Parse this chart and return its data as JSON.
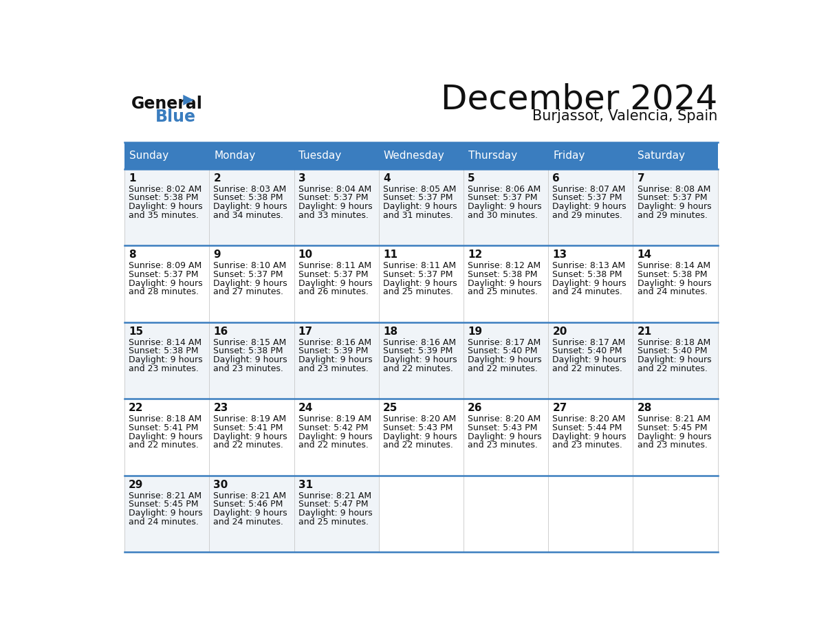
{
  "title": "December 2024",
  "subtitle": "Burjassot, Valencia, Spain",
  "header_color": "#3a7dbf",
  "header_text_color": "#ffffff",
  "day_names": [
    "Sunday",
    "Monday",
    "Tuesday",
    "Wednesday",
    "Thursday",
    "Friday",
    "Saturday"
  ],
  "bg_color": "#ffffff",
  "row_line_color": "#3a7dbf",
  "title_fontsize": 36,
  "subtitle_fontsize": 15,
  "header_fontsize": 11,
  "day_num_fontsize": 11,
  "cell_fontsize": 9,
  "days": [
    {
      "day": 1,
      "col": 0,
      "row": 0,
      "sunrise": "8:02 AM",
      "sunset": "5:38 PM",
      "daylight_h": "9 hours",
      "daylight_m": "and 35 minutes."
    },
    {
      "day": 2,
      "col": 1,
      "row": 0,
      "sunrise": "8:03 AM",
      "sunset": "5:38 PM",
      "daylight_h": "9 hours",
      "daylight_m": "and 34 minutes."
    },
    {
      "day": 3,
      "col": 2,
      "row": 0,
      "sunrise": "8:04 AM",
      "sunset": "5:37 PM",
      "daylight_h": "9 hours",
      "daylight_m": "and 33 minutes."
    },
    {
      "day": 4,
      "col": 3,
      "row": 0,
      "sunrise": "8:05 AM",
      "sunset": "5:37 PM",
      "daylight_h": "9 hours",
      "daylight_m": "and 31 minutes."
    },
    {
      "day": 5,
      "col": 4,
      "row": 0,
      "sunrise": "8:06 AM",
      "sunset": "5:37 PM",
      "daylight_h": "9 hours",
      "daylight_m": "and 30 minutes."
    },
    {
      "day": 6,
      "col": 5,
      "row": 0,
      "sunrise": "8:07 AM",
      "sunset": "5:37 PM",
      "daylight_h": "9 hours",
      "daylight_m": "and 29 minutes."
    },
    {
      "day": 7,
      "col": 6,
      "row": 0,
      "sunrise": "8:08 AM",
      "sunset": "5:37 PM",
      "daylight_h": "9 hours",
      "daylight_m": "and 29 minutes."
    },
    {
      "day": 8,
      "col": 0,
      "row": 1,
      "sunrise": "8:09 AM",
      "sunset": "5:37 PM",
      "daylight_h": "9 hours",
      "daylight_m": "and 28 minutes."
    },
    {
      "day": 9,
      "col": 1,
      "row": 1,
      "sunrise": "8:10 AM",
      "sunset": "5:37 PM",
      "daylight_h": "9 hours",
      "daylight_m": "and 27 minutes."
    },
    {
      "day": 10,
      "col": 2,
      "row": 1,
      "sunrise": "8:11 AM",
      "sunset": "5:37 PM",
      "daylight_h": "9 hours",
      "daylight_m": "and 26 minutes."
    },
    {
      "day": 11,
      "col": 3,
      "row": 1,
      "sunrise": "8:11 AM",
      "sunset": "5:37 PM",
      "daylight_h": "9 hours",
      "daylight_m": "and 25 minutes."
    },
    {
      "day": 12,
      "col": 4,
      "row": 1,
      "sunrise": "8:12 AM",
      "sunset": "5:38 PM",
      "daylight_h": "9 hours",
      "daylight_m": "and 25 minutes."
    },
    {
      "day": 13,
      "col": 5,
      "row": 1,
      "sunrise": "8:13 AM",
      "sunset": "5:38 PM",
      "daylight_h": "9 hours",
      "daylight_m": "and 24 minutes."
    },
    {
      "day": 14,
      "col": 6,
      "row": 1,
      "sunrise": "8:14 AM",
      "sunset": "5:38 PM",
      "daylight_h": "9 hours",
      "daylight_m": "and 24 minutes."
    },
    {
      "day": 15,
      "col": 0,
      "row": 2,
      "sunrise": "8:14 AM",
      "sunset": "5:38 PM",
      "daylight_h": "9 hours",
      "daylight_m": "and 23 minutes."
    },
    {
      "day": 16,
      "col": 1,
      "row": 2,
      "sunrise": "8:15 AM",
      "sunset": "5:38 PM",
      "daylight_h": "9 hours",
      "daylight_m": "and 23 minutes."
    },
    {
      "day": 17,
      "col": 2,
      "row": 2,
      "sunrise": "8:16 AM",
      "sunset": "5:39 PM",
      "daylight_h": "9 hours",
      "daylight_m": "and 23 minutes."
    },
    {
      "day": 18,
      "col": 3,
      "row": 2,
      "sunrise": "8:16 AM",
      "sunset": "5:39 PM",
      "daylight_h": "9 hours",
      "daylight_m": "and 22 minutes."
    },
    {
      "day": 19,
      "col": 4,
      "row": 2,
      "sunrise": "8:17 AM",
      "sunset": "5:40 PM",
      "daylight_h": "9 hours",
      "daylight_m": "and 22 minutes."
    },
    {
      "day": 20,
      "col": 5,
      "row": 2,
      "sunrise": "8:17 AM",
      "sunset": "5:40 PM",
      "daylight_h": "9 hours",
      "daylight_m": "and 22 minutes."
    },
    {
      "day": 21,
      "col": 6,
      "row": 2,
      "sunrise": "8:18 AM",
      "sunset": "5:40 PM",
      "daylight_h": "9 hours",
      "daylight_m": "and 22 minutes."
    },
    {
      "day": 22,
      "col": 0,
      "row": 3,
      "sunrise": "8:18 AM",
      "sunset": "5:41 PM",
      "daylight_h": "9 hours",
      "daylight_m": "and 22 minutes."
    },
    {
      "day": 23,
      "col": 1,
      "row": 3,
      "sunrise": "8:19 AM",
      "sunset": "5:41 PM",
      "daylight_h": "9 hours",
      "daylight_m": "and 22 minutes."
    },
    {
      "day": 24,
      "col": 2,
      "row": 3,
      "sunrise": "8:19 AM",
      "sunset": "5:42 PM",
      "daylight_h": "9 hours",
      "daylight_m": "and 22 minutes."
    },
    {
      "day": 25,
      "col": 3,
      "row": 3,
      "sunrise": "8:20 AM",
      "sunset": "5:43 PM",
      "daylight_h": "9 hours",
      "daylight_m": "and 22 minutes."
    },
    {
      "day": 26,
      "col": 4,
      "row": 3,
      "sunrise": "8:20 AM",
      "sunset": "5:43 PM",
      "daylight_h": "9 hours",
      "daylight_m": "and 23 minutes."
    },
    {
      "day": 27,
      "col": 5,
      "row": 3,
      "sunrise": "8:20 AM",
      "sunset": "5:44 PM",
      "daylight_h": "9 hours",
      "daylight_m": "and 23 minutes."
    },
    {
      "day": 28,
      "col": 6,
      "row": 3,
      "sunrise": "8:21 AM",
      "sunset": "5:45 PM",
      "daylight_h": "9 hours",
      "daylight_m": "and 23 minutes."
    },
    {
      "day": 29,
      "col": 0,
      "row": 4,
      "sunrise": "8:21 AM",
      "sunset": "5:45 PM",
      "daylight_h": "9 hours",
      "daylight_m": "and 24 minutes."
    },
    {
      "day": 30,
      "col": 1,
      "row": 4,
      "sunrise": "8:21 AM",
      "sunset": "5:46 PM",
      "daylight_h": "9 hours",
      "daylight_m": "and 24 minutes."
    },
    {
      "day": 31,
      "col": 2,
      "row": 4,
      "sunrise": "8:21 AM",
      "sunset": "5:47 PM",
      "daylight_h": "9 hours",
      "daylight_m": "and 25 minutes."
    }
  ]
}
